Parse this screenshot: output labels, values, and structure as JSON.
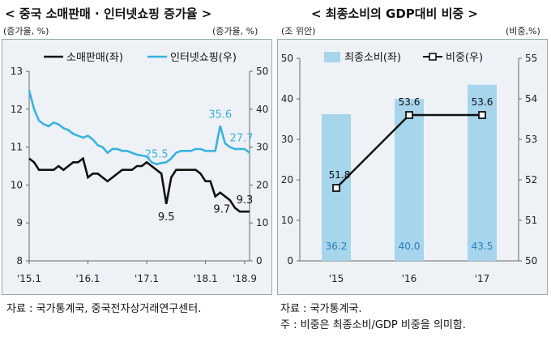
{
  "left_chart": {
    "title": "< 중국 소매판매 · 인터넷쇼핑 증가율 >",
    "unit_left": "(증가율, %)",
    "unit_right": "(증가율, %)",
    "source": "자료 : 국가통계국, 중국전자상거래연구센터.",
    "colors": {
      "retail": "#111111",
      "internet": "#38b3e0"
    }
  },
  "right_chart": {
    "title": "< 최종소비의 GDP대비 비중 >",
    "unit_left": "(조 위안)",
    "unit_right": "(비중,%)",
    "source": "자료 : 국가통계국.",
    "note": "주 : 비중은 최종소비/GDP 비중을 의미함.",
    "colors": {
      "bar": "#a6d5ec",
      "line": "#111111"
    }
  },
  "chart_data": [
    {
      "type": "line",
      "legend": [
        "소매판매(좌)",
        "인터넷쇼핑(우)"
      ],
      "legend_placement": "top",
      "x_ticks": [
        "'15.1",
        "'16.1",
        "'17.1",
        "'18.1",
        "'18.9"
      ],
      "y_left": {
        "min": 8,
        "max": 13,
        "ticks": [
          8,
          9,
          10,
          11,
          12,
          13
        ]
      },
      "y_right": {
        "min": 0,
        "max": 50,
        "ticks": [
          0,
          10,
          20,
          30,
          40,
          50
        ]
      },
      "grid": false,
      "series": [
        {
          "name": "소매판매(좌)",
          "axis": "left",
          "values": [
            10.7,
            10.6,
            10.4,
            10.4,
            10.4,
            10.4,
            10.5,
            10.4,
            10.5,
            10.6,
            10.6,
            10.7,
            10.2,
            10.3,
            10.3,
            10.2,
            10.1,
            10.2,
            10.3,
            10.4,
            10.4,
            10.4,
            10.5,
            10.5,
            10.6,
            10.5,
            10.4,
            10.3,
            9.5,
            10.2,
            10.4,
            10.4,
            10.4,
            10.4,
            10.4,
            10.3,
            10.1,
            10.1,
            9.7,
            9.8,
            9.7,
            9.6,
            9.4,
            9.3,
            9.3,
            9.3
          ]
        },
        {
          "name": "인터넷쇼핑(우)",
          "axis": "right",
          "values": [
            45.0,
            40.0,
            37.0,
            36.0,
            35.5,
            36.5,
            36.0,
            35.0,
            34.5,
            33.5,
            33.0,
            32.5,
            33.0,
            32.0,
            30.5,
            30.0,
            28.5,
            29.5,
            29.5,
            29.0,
            29.0,
            28.5,
            28.0,
            27.8,
            27.5,
            26.0,
            25.5,
            25.8,
            26.0,
            27.0,
            28.5,
            29.0,
            29.0,
            29.0,
            29.5,
            29.5,
            29.0,
            29.0,
            29.0,
            35.6,
            31.0,
            30.0,
            29.5,
            29.5,
            29.5,
            28.5
          ]
        }
      ],
      "annotations": [
        {
          "text": "25.5",
          "series": "인터넷쇼핑(우)"
        },
        {
          "text": "35.6",
          "series": "인터넷쇼핑(우)"
        },
        {
          "text": "27.7",
          "series": "인터넷쇼핑(우)"
        },
        {
          "text": "9.5",
          "series": "소매판매(좌)"
        },
        {
          "text": "9.7",
          "series": "소매판매(좌)"
        },
        {
          "text": "9.3",
          "series": "소매판매(좌)"
        }
      ]
    },
    {
      "type": "bar",
      "categories": [
        "'15",
        "'16",
        "'17"
      ],
      "legend": [
        "최종소비(좌)",
        "비중(우)"
      ],
      "legend_placement": "top",
      "y_left": {
        "min": 0,
        "max": 50,
        "ticks": [
          0,
          10,
          20,
          30,
          40,
          50
        ]
      },
      "y_right": {
        "min": 50,
        "max": 55,
        "ticks": [
          50,
          51,
          52,
          53,
          54,
          55
        ]
      },
      "grid": false,
      "series": [
        {
          "name": "최종소비(좌)",
          "type": "bar",
          "axis": "left",
          "values": [
            36.2,
            40.0,
            43.5
          ],
          "labels": [
            "36.2",
            "40.0",
            "43.5"
          ]
        },
        {
          "name": "비중(우)",
          "type": "line",
          "axis": "right",
          "values": [
            51.8,
            53.6,
            53.6
          ],
          "labels": [
            "51.8",
            "53.6",
            "53.6"
          ]
        }
      ]
    }
  ]
}
